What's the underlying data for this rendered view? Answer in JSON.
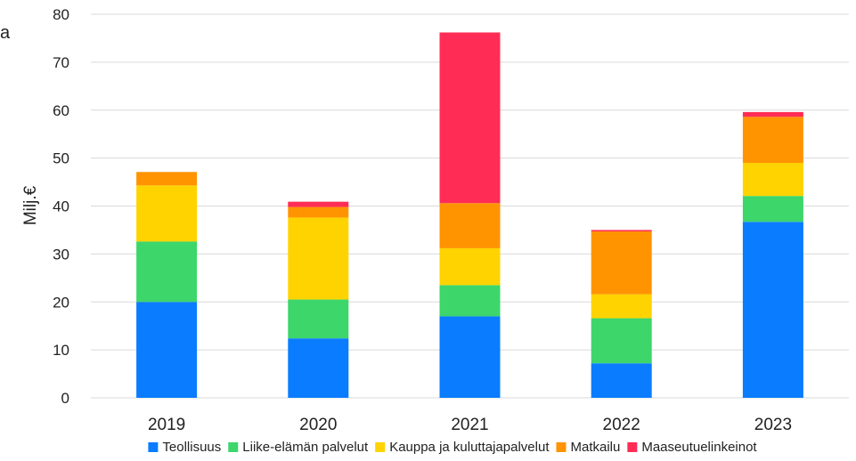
{
  "corner_text": "a",
  "chart_data": {
    "type": "bar",
    "stacked": true,
    "title": "",
    "xlabel": "",
    "ylabel": "Milj.€",
    "ylim": [
      0,
      80
    ],
    "yticks": [
      0,
      10,
      20,
      30,
      40,
      50,
      60,
      70,
      80
    ],
    "grid": true,
    "legend": "bottom",
    "categories": [
      "2019",
      "2020",
      "2021",
      "2022",
      "2023"
    ],
    "series": [
      {
        "name": "Teollisuus",
        "color": "#0A7CFF",
        "values": [
          20.0,
          12.4,
          17.0,
          7.2,
          36.7
        ]
      },
      {
        "name": "Liike-elämän palvelut",
        "color": "#3DD66B",
        "values": [
          12.6,
          8.1,
          6.5,
          9.4,
          5.4
        ]
      },
      {
        "name": "Kauppa ja kuluttajapalvelut",
        "color": "#FFD300",
        "values": [
          11.7,
          17.1,
          7.7,
          5.0,
          6.9
        ]
      },
      {
        "name": "Matkailu",
        "color": "#FF9400",
        "values": [
          2.8,
          2.2,
          9.4,
          13.1,
          9.6
        ]
      },
      {
        "name": "Maaseutuelinkeinot",
        "color": "#FF2D55",
        "values": [
          0.0,
          1.1,
          35.6,
          0.3,
          1.0
        ]
      }
    ]
  }
}
